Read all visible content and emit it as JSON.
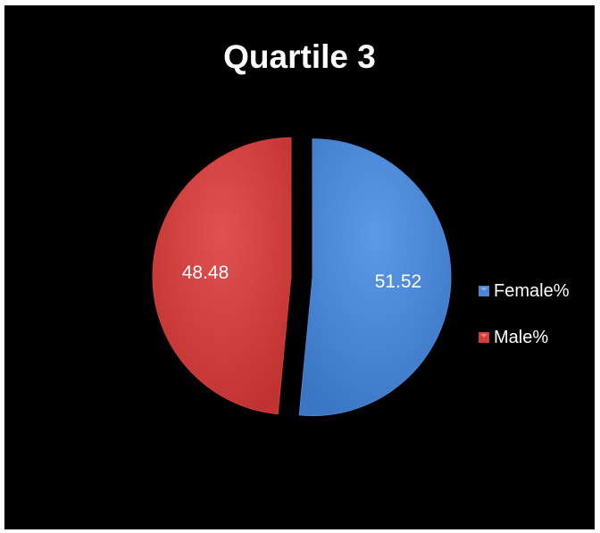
{
  "chart_data": {
    "type": "pie",
    "title": "Quartile 3",
    "slices": [
      {
        "label": "Female%",
        "value": 51.52,
        "color": "#4a86d4",
        "data_label": "51.52"
      },
      {
        "label": "Male%",
        "value": 48.48,
        "color": "#d33d3b",
        "data_label": "48.48"
      }
    ],
    "exploded": true,
    "legend_position": "right",
    "background": "#000000"
  }
}
